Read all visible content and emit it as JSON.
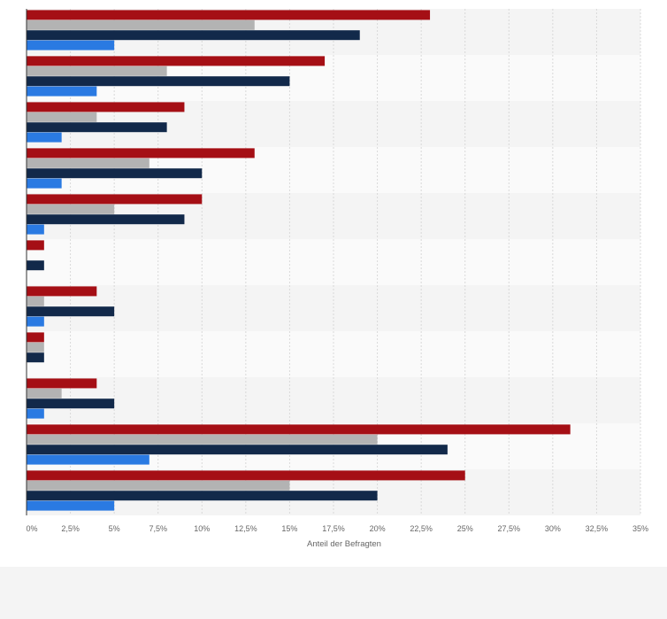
{
  "chart_data": {
    "type": "bar",
    "orientation": "horizontal",
    "xlabel": "Anteil der Befragten",
    "ylabel": "",
    "title": "",
    "xlim": [
      0,
      35
    ],
    "tick_labels": [
      "0%",
      "2,5%",
      "5%",
      "7,5%",
      "10%",
      "12,5%",
      "15%",
      "17,5%",
      "20%",
      "22,5%",
      "25%",
      "27,5%",
      "30%",
      "32,5%",
      "35%"
    ],
    "tick_values": [
      0,
      2.5,
      5,
      7.5,
      10,
      12.5,
      15,
      17.5,
      20,
      22.5,
      25,
      27.5,
      30,
      32.5,
      35
    ],
    "grid": true,
    "group_count": 11,
    "series": [
      {
        "color": "#a50f15",
        "values": [
          23,
          17,
          9,
          13,
          10,
          1,
          4,
          1,
          4,
          31,
          25
        ]
      },
      {
        "color": "#b3b3b3",
        "values": [
          13,
          8,
          4,
          7,
          5,
          0,
          1,
          1,
          2,
          20,
          15
        ]
      },
      {
        "color": "#12294a",
        "values": [
          19,
          15,
          8,
          10,
          9,
          1,
          5,
          1,
          5,
          24,
          20
        ]
      },
      {
        "color": "#2a7ae2",
        "values": [
          5,
          4,
          2,
          2,
          1,
          0,
          1,
          0,
          1,
          7,
          5
        ]
      }
    ]
  }
}
